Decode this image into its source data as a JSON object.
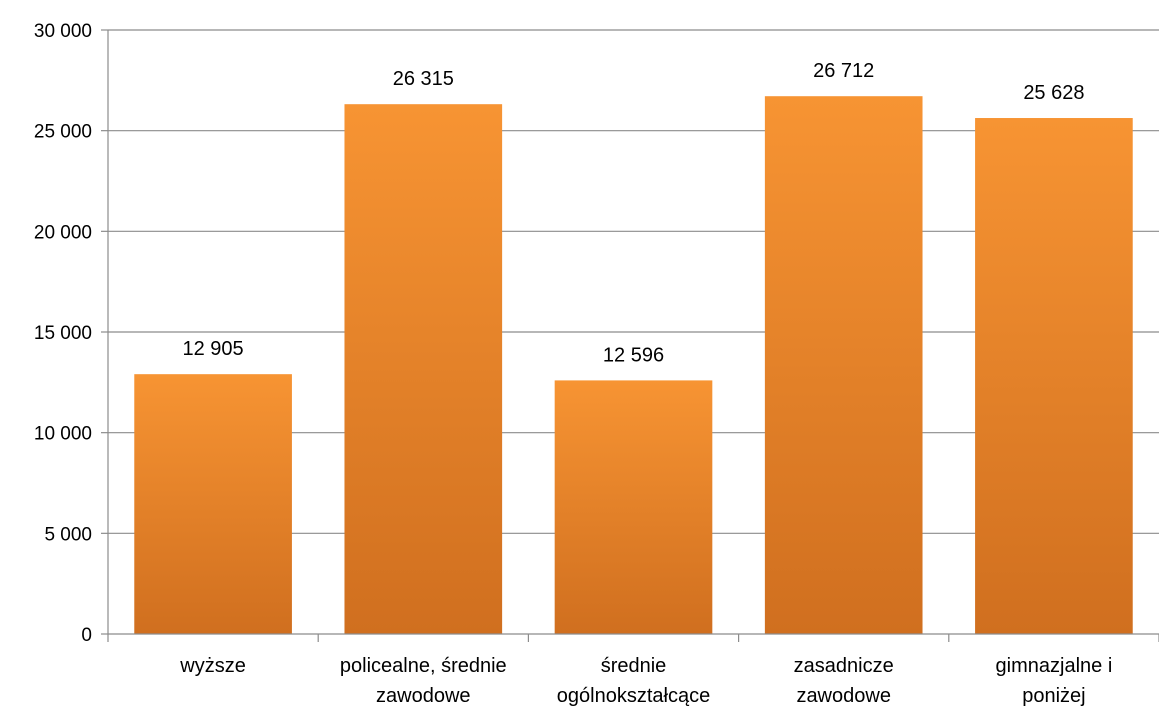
{
  "chart_data": {
    "type": "bar",
    "title": "",
    "xlabel": "",
    "ylabel": "",
    "categories": [
      [
        "wyższe"
      ],
      [
        "policealne, średnie",
        "zawodowe"
      ],
      [
        "średnie",
        "ogólnokształcące"
      ],
      [
        "zasadnicze",
        "zawodowe"
      ],
      [
        "gimnazjalne i",
        "poniżej"
      ]
    ],
    "values": [
      12905,
      26315,
      12596,
      26712,
      25628
    ],
    "value_labels": [
      "12 905",
      "26 315",
      "12 596",
      "26 712",
      "25 628"
    ],
    "ylim": [
      0,
      30000
    ],
    "yticks": [
      0,
      5000,
      10000,
      15000,
      20000,
      25000,
      30000
    ],
    "ytick_labels": [
      "0",
      "5 000",
      "10 000",
      "15 000",
      "20 000",
      "25 000",
      "30 000"
    ],
    "grid": true,
    "legend": "none",
    "colors": {
      "bar_top": "#F79433",
      "bar_bottom": "#D06F1F",
      "grid": "#8C8C8C",
      "axis": "#8C8C8C"
    }
  }
}
